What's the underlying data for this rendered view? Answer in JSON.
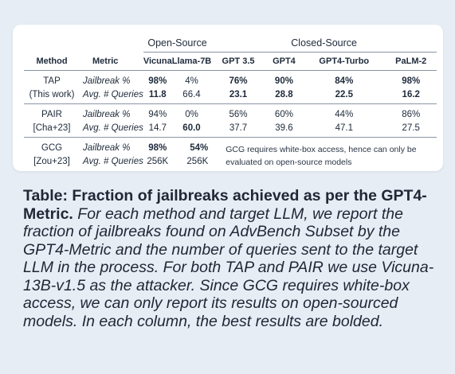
{
  "table": {
    "groups": {
      "open": "Open-Source",
      "closed": "Closed-Source"
    },
    "headers": [
      "Method",
      "Metric",
      "Vicuna",
      "Llama-7B",
      "GPT 3.5",
      "GPT4",
      "GPT4-Turbo",
      "PaLM-2"
    ],
    "rows": [
      {
        "method": [
          "TAP",
          "(This work)"
        ],
        "metrics": [
          "Jailbreak %",
          "Avg. # Queries"
        ],
        "values": [
          [
            "98%",
            "4%",
            "76%",
            "90%",
            "84%",
            "98%"
          ],
          [
            "11.8",
            "66.4",
            "23.1",
            "28.8",
            "22.5",
            "16.2"
          ]
        ]
      },
      {
        "method": [
          "PAIR",
          "[Cha+23]"
        ],
        "metrics": [
          "Jailbreak %",
          "Avg. # Queries"
        ],
        "values": [
          [
            "94%",
            "0%",
            "56%",
            "60%",
            "44%",
            "86%"
          ],
          [
            "14.7",
            "60.0",
            "37.7",
            "39.6",
            "47.1",
            "27.5"
          ]
        ]
      },
      {
        "method": [
          "GCG",
          "[Zou+23]"
        ],
        "metrics": [
          "Jailbreak %",
          "Avg. # Queries"
        ],
        "values": [
          [
            "98%",
            "54%"
          ],
          [
            "256K",
            "256K"
          ]
        ],
        "note": "GCG requires white-box access, hence can only be evaluated on open-source models"
      }
    ]
  },
  "caption": {
    "title": "Table: Fraction of jailbreaks achieved as per the GPT4-Metric.",
    "body": "For each method and target LLM, we report the fraction of jailbreaks found on AdvBench Subset by the GPT4-Metric and the number of queries sent to the target LLM in the process. For both TAP and PAIR we use Vicuna-13B-v1.5 as the attacker. Since GCG requires white-box access, we can only report its results on open-sourced models. In each column, the best results are bolded."
  }
}
